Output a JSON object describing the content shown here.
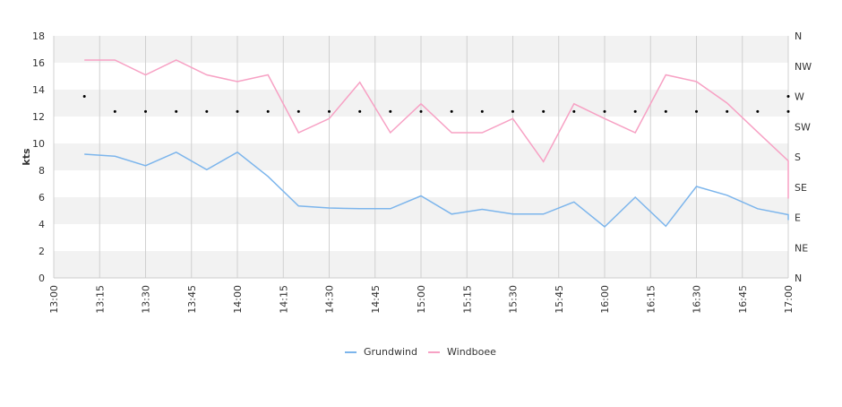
{
  "chart_data": {
    "type": "line",
    "ylabel": "kts",
    "ylim": [
      0,
      18
    ],
    "y_ticks": [
      "0",
      "2",
      "4",
      "6",
      "8",
      "10",
      "12",
      "14",
      "16",
      "18"
    ],
    "direction_ticks": [
      "N",
      "NE",
      "E",
      "SE",
      "S",
      "SW",
      "W",
      "NW",
      "N"
    ],
    "x_start": "13:00",
    "x_end": "17:00",
    "x_ticks": [
      "13:00",
      "13:15",
      "13:30",
      "13:45",
      "14:00",
      "14:15",
      "14:30",
      "14:45",
      "15:00",
      "15:15",
      "15:30",
      "15:45",
      "16:00",
      "16:15",
      "16:30",
      "16:45",
      "17:00"
    ],
    "grid": "vertical lines with alternating horizontal bands",
    "legend_position": "bottom-center",
    "series": [
      {
        "name": "Grundwind",
        "color": "#7cb5ec",
        "points": [
          [
            "13:10",
            9.2
          ],
          [
            "13:20",
            9.05
          ],
          [
            "13:30",
            8.35
          ],
          [
            "13:40",
            9.35
          ],
          [
            "13:50",
            8.05
          ],
          [
            "14:00",
            9.35
          ],
          [
            "14:10",
            7.55
          ],
          [
            "14:20",
            5.35
          ],
          [
            "14:30",
            5.2
          ],
          [
            "14:40",
            5.15
          ],
          [
            "14:50",
            5.15
          ],
          [
            "15:00",
            6.1
          ],
          [
            "15:10",
            4.75
          ],
          [
            "15:20",
            5.1
          ],
          [
            "15:30",
            4.75
          ],
          [
            "15:40",
            4.75
          ],
          [
            "15:50",
            5.65
          ],
          [
            "16:00",
            3.8
          ],
          [
            "16:10",
            6.0
          ],
          [
            "16:20",
            3.85
          ],
          [
            "16:30",
            6.8
          ],
          [
            "16:40",
            6.15
          ],
          [
            "16:50",
            5.15
          ],
          [
            "17:00",
            4.7
          ],
          [
            "17:00",
            4.3
          ]
        ]
      },
      {
        "name": "Windboee",
        "color": "#f7a1c4",
        "points": [
          [
            "13:10",
            16.2
          ],
          [
            "13:20",
            16.2
          ],
          [
            "13:30",
            15.1
          ],
          [
            "13:40",
            16.2
          ],
          [
            "13:50",
            15.1
          ],
          [
            "14:00",
            14.6
          ],
          [
            "14:10",
            15.1
          ],
          [
            "14:20",
            10.8
          ],
          [
            "14:30",
            11.85
          ],
          [
            "14:40",
            14.55
          ],
          [
            "14:50",
            10.8
          ],
          [
            "15:00",
            12.95
          ],
          [
            "15:10",
            10.8
          ],
          [
            "15:20",
            10.8
          ],
          [
            "15:30",
            11.85
          ],
          [
            "15:40",
            8.65
          ],
          [
            "15:50",
            12.95
          ],
          [
            "16:00",
            11.85
          ],
          [
            "16:10",
            10.8
          ],
          [
            "16:20",
            15.1
          ],
          [
            "16:30",
            14.6
          ],
          [
            "16:40",
            13.0
          ],
          [
            "16:50",
            10.85
          ],
          [
            "17:00",
            8.7
          ],
          [
            "17:00",
            5.9
          ]
        ]
      }
    ],
    "direction_points": [
      [
        "13:10",
        "W"
      ],
      [
        "13:20",
        "WSW"
      ],
      [
        "13:30",
        "WSW"
      ],
      [
        "13:40",
        "WSW"
      ],
      [
        "13:50",
        "WSW"
      ],
      [
        "14:00",
        "WSW"
      ],
      [
        "14:10",
        "WSW"
      ],
      [
        "14:20",
        "WSW"
      ],
      [
        "14:30",
        "WSW"
      ],
      [
        "14:40",
        "WSW"
      ],
      [
        "14:50",
        "WSW"
      ],
      [
        "15:00",
        "WSW"
      ],
      [
        "15:10",
        "WSW"
      ],
      [
        "15:20",
        "WSW"
      ],
      [
        "15:30",
        "WSW"
      ],
      [
        "15:40",
        "WSW"
      ],
      [
        "15:50",
        "WSW"
      ],
      [
        "16:00",
        "WSW"
      ],
      [
        "16:10",
        "WSW"
      ],
      [
        "16:20",
        "WSW"
      ],
      [
        "16:30",
        "WSW"
      ],
      [
        "16:40",
        "WSW"
      ],
      [
        "16:50",
        "WSW"
      ],
      [
        "17:00",
        "W"
      ],
      [
        "17:00",
        "WSW"
      ]
    ]
  }
}
